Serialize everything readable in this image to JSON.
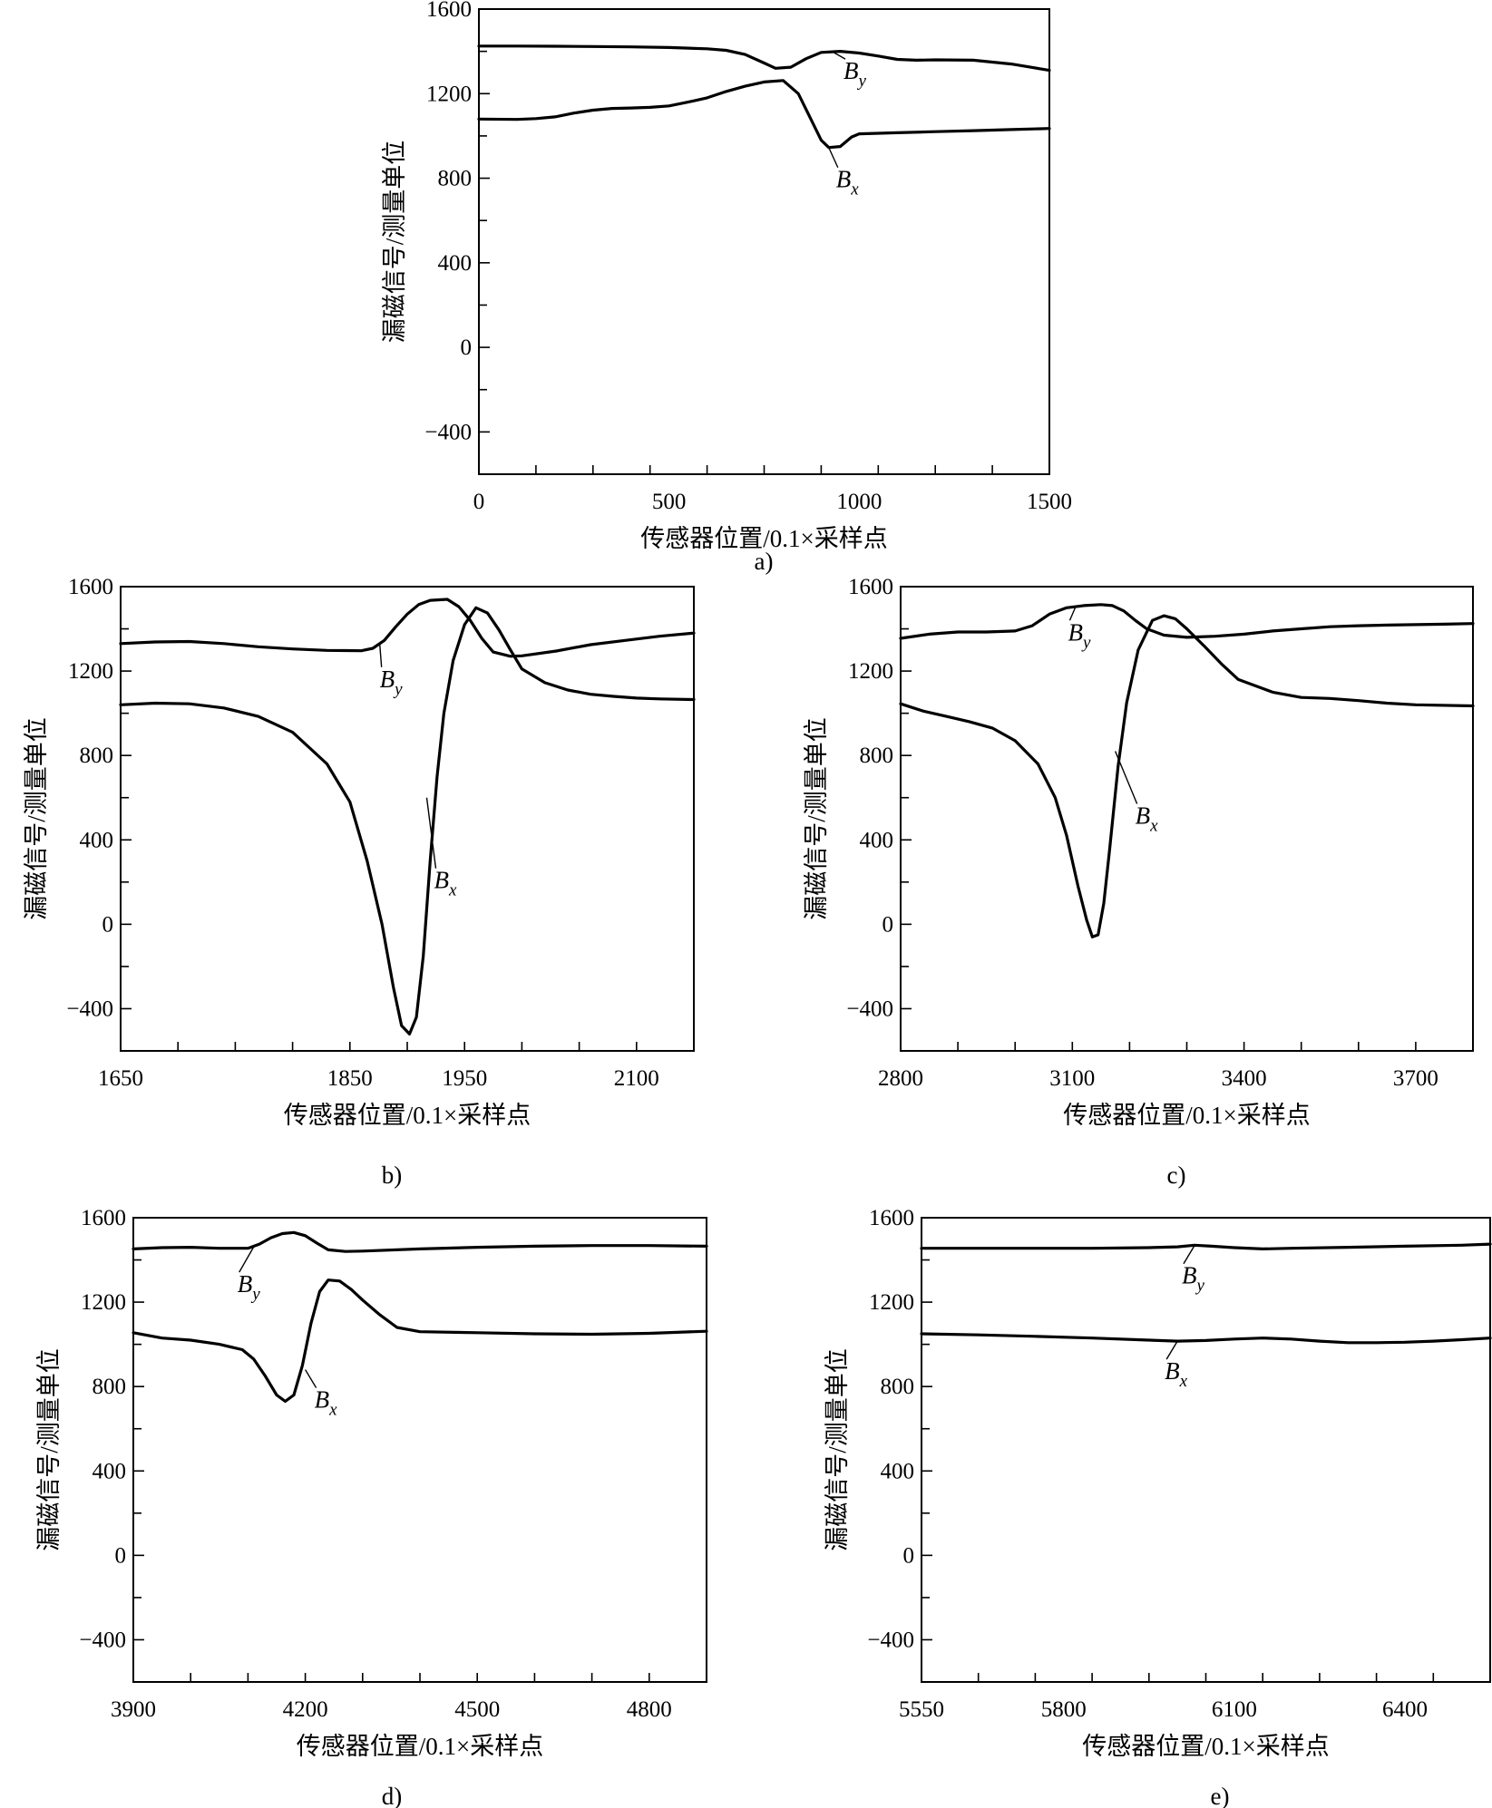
{
  "chart_data": [
    {
      "type": "line",
      "panel_label": "a)",
      "xlabel": "传感器位置/0.1×采样点",
      "ylabel": "漏磁信号/测量单位",
      "xlim": [
        0,
        1500
      ],
      "ylim": [
        -600,
        1600
      ],
      "xticks": [
        0,
        500,
        1000,
        1500
      ],
      "xtick_labels": [
        "0",
        "500",
        "1000",
        "1500"
      ],
      "yticks": [
        -400,
        0,
        400,
        800,
        1200,
        1600
      ],
      "ytick_labels": [
        "−400",
        "0",
        "400",
        "800",
        "1200",
        "1600"
      ],
      "series": [
        {
          "name": "B",
          "subscript": "y",
          "x": [
            0,
            100,
            200,
            300,
            400,
            500,
            600,
            650,
            700,
            750,
            780,
            820,
            860,
            900,
            950,
            1000,
            1050,
            1100,
            1150,
            1200,
            1300,
            1400,
            1500
          ],
          "y": [
            1425,
            1425,
            1424,
            1423,
            1421,
            1418,
            1412,
            1405,
            1385,
            1345,
            1320,
            1325,
            1365,
            1395,
            1400,
            1392,
            1378,
            1362,
            1358,
            1360,
            1358,
            1340,
            1310
          ]
        },
        {
          "name": "B",
          "subscript": "x",
          "x": [
            0,
            100,
            150,
            200,
            250,
            300,
            350,
            400,
            450,
            500,
            550,
            600,
            650,
            700,
            750,
            800,
            840,
            870,
            900,
            920,
            950,
            980,
            1000,
            1100,
            1200,
            1300,
            1400,
            1500
          ],
          "y": [
            1080,
            1078,
            1082,
            1090,
            1108,
            1122,
            1130,
            1132,
            1135,
            1142,
            1160,
            1180,
            1210,
            1235,
            1255,
            1262,
            1200,
            1090,
            980,
            945,
            950,
            995,
            1010,
            1015,
            1020,
            1025,
            1030,
            1035
          ]
        }
      ],
      "annotations": [
        {
          "series": "y",
          "text": "B",
          "subscript": "y",
          "at_x": 930,
          "at_y": 1398
        },
        {
          "series": "x",
          "text": "B",
          "subscript": "x",
          "at_x": 920,
          "at_y": 945
        }
      ]
    },
    {
      "type": "line",
      "panel_label": "b)",
      "xlabel": "传感器位置/0.1×采样点",
      "ylabel": "漏磁信号/测量单位",
      "xlim": [
        1650,
        2150
      ],
      "ylim": [
        -600,
        1600
      ],
      "xticks": [
        1650,
        1850,
        1950,
        2100
      ],
      "xtick_labels": [
        "1650",
        "1850",
        "1950",
        "2100"
      ],
      "yticks": [
        -400,
        0,
        400,
        800,
        1200,
        1600
      ],
      "ytick_labels": [
        "−400",
        "0",
        "400",
        "800",
        "1200",
        "1600"
      ],
      "series": [
        {
          "name": "B",
          "subscript": "y",
          "x": [
            1650,
            1680,
            1710,
            1740,
            1770,
            1800,
            1830,
            1860,
            1870,
            1880,
            1890,
            1900,
            1910,
            1920,
            1935,
            1945,
            1955,
            1965,
            1975,
            1990,
            2000,
            2030,
            2060,
            2090,
            2120,
            2150
          ],
          "y": [
            1330,
            1338,
            1340,
            1330,
            1315,
            1305,
            1298,
            1296,
            1308,
            1345,
            1410,
            1470,
            1515,
            1535,
            1540,
            1505,
            1440,
            1355,
            1290,
            1270,
            1272,
            1295,
            1325,
            1345,
            1365,
            1380
          ]
        },
        {
          "name": "B",
          "subscript": "x",
          "x": [
            1650,
            1680,
            1710,
            1740,
            1770,
            1800,
            1830,
            1850,
            1865,
            1878,
            1888,
            1895,
            1902,
            1908,
            1914,
            1920,
            1926,
            1932,
            1940,
            1950,
            1960,
            1970,
            1980,
            1990,
            2000,
            2020,
            2040,
            2060,
            2080,
            2100,
            2120,
            2150
          ],
          "y": [
            1040,
            1048,
            1045,
            1025,
            985,
            910,
            760,
            580,
            300,
            0,
            -300,
            -480,
            -520,
            -440,
            -150,
            300,
            700,
            1000,
            1250,
            1420,
            1500,
            1475,
            1395,
            1300,
            1210,
            1145,
            1110,
            1090,
            1080,
            1072,
            1068,
            1065
          ]
        }
      ],
      "annotations": [
        {
          "series": "y",
          "text": "B",
          "subscript": "y",
          "at_x": 1876,
          "at_y": 1330
        },
        {
          "series": "x",
          "text": "B",
          "subscript": "x",
          "at_x": 1917,
          "at_y": 600
        }
      ]
    },
    {
      "type": "line",
      "panel_label": "c)",
      "xlabel": "传感器位置/0.1×采样点",
      "ylabel": "漏磁信号/测量单位",
      "xlim": [
        2800,
        3800
      ],
      "ylim": [
        -600,
        1600
      ],
      "xticks": [
        2800,
        3100,
        3400,
        3700
      ],
      "xtick_labels": [
        "2800",
        "3100",
        "3400",
        "3700"
      ],
      "yticks": [
        -400,
        0,
        400,
        800,
        1200,
        1600
      ],
      "ytick_labels": [
        "−400",
        "0",
        "400",
        "800",
        "1200",
        "1600"
      ],
      "series": [
        {
          "name": "B",
          "subscript": "y",
          "x": [
            2800,
            2850,
            2900,
            2950,
            3000,
            3030,
            3060,
            3090,
            3120,
            3150,
            3170,
            3190,
            3210,
            3230,
            3260,
            3300,
            3350,
            3400,
            3450,
            3500,
            3550,
            3600,
            3650,
            3700,
            3750,
            3800
          ],
          "y": [
            1355,
            1375,
            1385,
            1385,
            1390,
            1415,
            1470,
            1500,
            1510,
            1515,
            1510,
            1485,
            1440,
            1400,
            1370,
            1360,
            1365,
            1375,
            1390,
            1400,
            1410,
            1415,
            1418,
            1420,
            1422,
            1425
          ]
        },
        {
          "name": "B",
          "subscript": "x",
          "x": [
            2800,
            2840,
            2880,
            2920,
            2960,
            3000,
            3040,
            3070,
            3090,
            3110,
            3125,
            3135,
            3145,
            3155,
            3165,
            3180,
            3195,
            3215,
            3240,
            3260,
            3280,
            3300,
            3330,
            3360,
            3390,
            3420,
            3450,
            3500,
            3550,
            3600,
            3650,
            3700,
            3800
          ],
          "y": [
            1045,
            1010,
            985,
            960,
            930,
            870,
            760,
            600,
            420,
            180,
            20,
            -60,
            -50,
            100,
            350,
            750,
            1050,
            1300,
            1440,
            1462,
            1448,
            1400,
            1320,
            1235,
            1160,
            1130,
            1100,
            1075,
            1070,
            1060,
            1048,
            1040,
            1035
          ]
        }
      ],
      "annotations": [
        {
          "series": "y",
          "text": "B",
          "subscript": "y",
          "at_x": 3105,
          "at_y": 1500
        },
        {
          "series": "x",
          "text": "B",
          "subscript": "x",
          "at_x": 3175,
          "at_y": 820
        }
      ]
    },
    {
      "type": "line",
      "panel_label": "d)",
      "xlabel": "传感器位置/0.1×采样点",
      "ylabel": "漏磁信号/测量单位",
      "xlim": [
        3900,
        4900
      ],
      "ylim": [
        -600,
        1600
      ],
      "xticks": [
        3900,
        4200,
        4500,
        4800
      ],
      "xtick_labels": [
        "3900",
        "4200",
        "4500",
        "4800"
      ],
      "yticks": [
        -400,
        0,
        400,
        800,
        1200,
        1600
      ],
      "ytick_labels": [
        "−400",
        "0",
        "400",
        "800",
        "1200",
        "1600"
      ],
      "series": [
        {
          "name": "B",
          "subscript": "y",
          "x": [
            3900,
            3950,
            4000,
            4050,
            4100,
            4120,
            4140,
            4160,
            4180,
            4200,
            4220,
            4240,
            4270,
            4300,
            4400,
            4500,
            4600,
            4700,
            4800,
            4900
          ],
          "y": [
            1452,
            1458,
            1460,
            1455,
            1455,
            1475,
            1505,
            1525,
            1530,
            1515,
            1480,
            1448,
            1440,
            1442,
            1452,
            1460,
            1465,
            1468,
            1468,
            1465
          ]
        },
        {
          "name": "B",
          "subscript": "x",
          "x": [
            3900,
            3950,
            4000,
            4050,
            4090,
            4110,
            4130,
            4150,
            4165,
            4180,
            4195,
            4210,
            4225,
            4240,
            4260,
            4280,
            4300,
            4330,
            4360,
            4400,
            4500,
            4600,
            4700,
            4800,
            4900
          ],
          "y": [
            1055,
            1030,
            1020,
            1000,
            975,
            930,
            850,
            760,
            730,
            760,
            900,
            1100,
            1250,
            1305,
            1300,
            1260,
            1210,
            1140,
            1080,
            1060,
            1055,
            1050,
            1048,
            1052,
            1062
          ]
        }
      ],
      "annotations": [
        {
          "series": "y",
          "text": "B",
          "subscript": "y",
          "at_x": 4110,
          "at_y": 1462
        },
        {
          "series": "x",
          "text": "B",
          "subscript": "x",
          "at_x": 4200,
          "at_y": 880
        }
      ]
    },
    {
      "type": "line",
      "panel_label": "e)",
      "xlabel": "传感器位置/0.1×采样点",
      "ylabel": "漏磁信号/测量单位",
      "xlim": [
        5550,
        6550
      ],
      "ylim": [
        -600,
        1600
      ],
      "xticks": [
        5550,
        5800,
        6100,
        6400
      ],
      "xtick_labels": [
        "5550",
        "5800",
        "6100",
        "6400"
      ],
      "yticks": [
        -400,
        0,
        400,
        800,
        1200,
        1600
      ],
      "ytick_labels": [
        "−400",
        "0",
        "400",
        "800",
        "1200",
        "1600"
      ],
      "series": [
        {
          "name": "B",
          "subscript": "y",
          "x": [
            5550,
            5650,
            5750,
            5850,
            5950,
            6000,
            6030,
            6060,
            6100,
            6150,
            6200,
            6300,
            6400,
            6500,
            6550
          ],
          "y": [
            1455,
            1455,
            1455,
            1455,
            1458,
            1462,
            1470,
            1465,
            1458,
            1452,
            1455,
            1460,
            1465,
            1470,
            1475
          ]
        },
        {
          "name": "B",
          "subscript": "x",
          "x": [
            5550,
            5650,
            5750,
            5850,
            5950,
            6000,
            6050,
            6100,
            6150,
            6200,
            6250,
            6300,
            6350,
            6400,
            6450,
            6500,
            6550
          ],
          "y": [
            1050,
            1045,
            1038,
            1030,
            1020,
            1015,
            1018,
            1025,
            1030,
            1025,
            1015,
            1008,
            1008,
            1010,
            1015,
            1022,
            1030
          ]
        }
      ],
      "annotations": [
        {
          "series": "y",
          "text": "B",
          "subscript": "y",
          "at_x": 6030,
          "at_y": 1468
        },
        {
          "series": "x",
          "text": "B",
          "subscript": "x",
          "at_x": 6000,
          "at_y": 1015
        }
      ]
    }
  ]
}
